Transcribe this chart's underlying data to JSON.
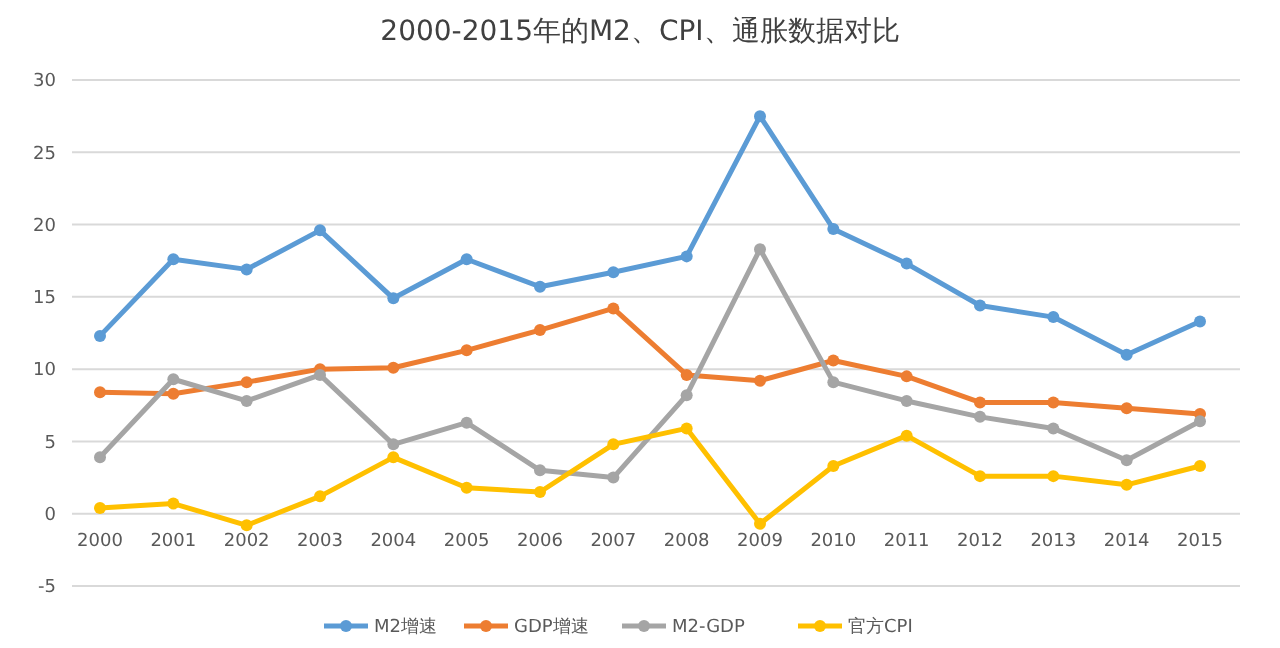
{
  "chart_data": {
    "type": "line",
    "title": "2000-2015年的M2、CPI、通胀数据对比",
    "categories": [
      "2000",
      "2001",
      "2002",
      "2003",
      "2004",
      "2005",
      "2006",
      "2007",
      "2008",
      "2009",
      "2010",
      "2011",
      "2012",
      "2013",
      "2014",
      "2015"
    ],
    "series": [
      {
        "name": "M2增速",
        "color": "#5b9bd5",
        "values": [
          12.3,
          17.6,
          16.9,
          19.6,
          14.9,
          17.6,
          15.7,
          16.7,
          17.8,
          27.5,
          19.7,
          17.3,
          14.4,
          13.6,
          11.0,
          13.3
        ]
      },
      {
        "name": "GDP增速",
        "color": "#ed7d31",
        "values": [
          8.4,
          8.3,
          9.1,
          10.0,
          10.1,
          11.3,
          12.7,
          14.2,
          9.6,
          9.2,
          10.6,
          9.5,
          7.7,
          7.7,
          7.3,
          6.9
        ]
      },
      {
        "name": "M2-GDP",
        "color": "#a5a5a5",
        "values": [
          3.9,
          9.3,
          7.8,
          9.6,
          4.8,
          6.3,
          3.0,
          2.5,
          8.2,
          18.3,
          9.1,
          7.8,
          6.7,
          5.9,
          3.7,
          6.4
        ]
      },
      {
        "name": "官方CPI",
        "color": "#ffc000",
        "values": [
          0.4,
          0.7,
          -0.8,
          1.2,
          3.9,
          1.8,
          1.5,
          4.8,
          5.9,
          -0.7,
          3.3,
          5.4,
          2.6,
          2.6,
          2.0,
          3.3
        ]
      }
    ],
    "ylim": [
      -5,
      30
    ],
    "yticks": [
      -5,
      0,
      5,
      10,
      15,
      20,
      25,
      30
    ],
    "grid": "y",
    "legend": "bottom",
    "marker": "circle",
    "line_style": "solid"
  }
}
